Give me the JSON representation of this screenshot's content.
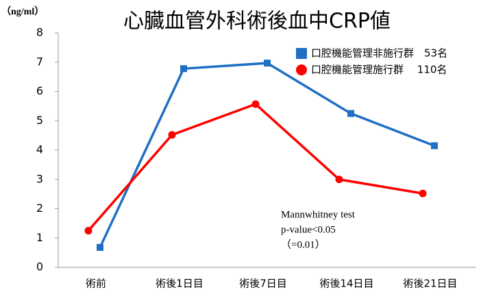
{
  "chart_data": {
    "type": "line",
    "title": "心臓血管外科術後血中CRP値",
    "y_label": "（ng/ml）",
    "categories": [
      "術前",
      "術後1日目",
      "術後7日目",
      "術後14日目",
      "術後21日目"
    ],
    "series": [
      {
        "name": "口腔機能管理非施行群　53名",
        "color": "#1f6fc5",
        "marker": "square",
        "values": [
          0.68,
          6.78,
          6.97,
          5.25,
          4.15
        ]
      },
      {
        "name": "口腔機能管理施行群　 110名",
        "color": "#ff0000",
        "marker": "circle",
        "values": [
          1.25,
          4.52,
          5.57,
          3.0,
          2.52
        ]
      }
    ],
    "ylim": [
      0,
      8
    ],
    "yticks": [
      0,
      1,
      2,
      3,
      4,
      5,
      6,
      7,
      8
    ],
    "grid": false,
    "legend": "top-right",
    "annotations": [
      "Mannwhitney test",
      "p-value<0.05",
      "（=0.01）"
    ]
  }
}
